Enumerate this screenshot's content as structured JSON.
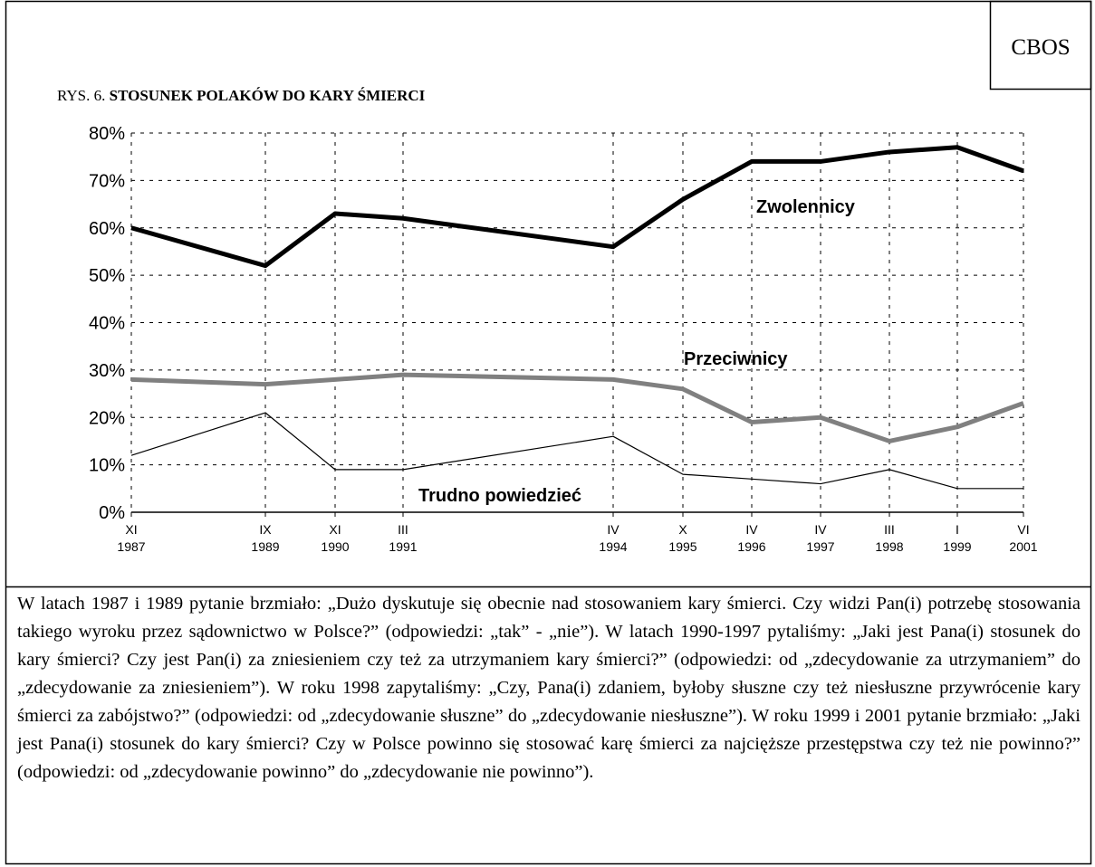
{
  "logo": "CBOS",
  "chart_data": {
    "type": "line",
    "figure_label": "RYS. 6.",
    "title": "STOSUNEK POLAKÓW DO KARY ŚMIERCI",
    "categories": [
      {
        "month": "XI",
        "year": "1987"
      },
      {
        "month": "IX",
        "year": "1989"
      },
      {
        "month": "XI",
        "year": "1990"
      },
      {
        "month": "III",
        "year": "1991"
      },
      {
        "month": "IV",
        "year": "1994"
      },
      {
        "month": "X",
        "year": "1995"
      },
      {
        "month": "IV",
        "year": "1996"
      },
      {
        "month": "IV",
        "year": "1997"
      },
      {
        "month": "III",
        "year": "1998"
      },
      {
        "month": "I",
        "year": "1999"
      },
      {
        "month": "VI",
        "year": "2001"
      }
    ],
    "series": [
      {
        "name": "Zwolennicy",
        "color": "#000000",
        "values": [
          60,
          52,
          63,
          62,
          56,
          66,
          74,
          74,
          76,
          77,
          72
        ]
      },
      {
        "name": "Przeciwnicy",
        "color": "#808080",
        "values": [
          28,
          27,
          28,
          29,
          28,
          26,
          19,
          20,
          15,
          18,
          23
        ]
      },
      {
        "name": "Trudno powiedzieć",
        "color": "#000000",
        "values": [
          12,
          21,
          9,
          9,
          16,
          8,
          7,
          6,
          9,
          5,
          5
        ]
      }
    ],
    "ylim": [
      0,
      80
    ],
    "yticks": [
      {
        "value": 0,
        "label": "0%"
      },
      {
        "value": 10,
        "label": "10%"
      },
      {
        "value": 20,
        "label": "20%"
      },
      {
        "value": 30,
        "label": "30%"
      },
      {
        "value": 40,
        "label": "40%"
      },
      {
        "value": 50,
        "label": "50%"
      },
      {
        "value": 60,
        "label": "60%"
      },
      {
        "value": 70,
        "label": "70%"
      },
      {
        "value": 80,
        "label": "80%"
      }
    ],
    "grid": true
  },
  "note": "W latach 1987 i 1989 pytanie brzmiało: „Dużo dyskutuje się obecnie nad stosowaniem kary śmierci. Czy widzi Pan(i) potrzebę stosowania takiego wyroku przez sądownictwo w Polsce?” (odpowiedzi: „tak” - „nie”). W latach 1990-1997 pytaliśmy: „Jaki jest Pana(i) stosunek do kary śmierci? Czy jest Pan(i) za zniesieniem czy też za utrzymaniem kary śmierci?” (odpowiedzi: od „zdecydowanie za utrzymaniem” do „zdecydowanie za zniesieniem”). W roku 1998 zapytaliśmy: „Czy, Pana(i) zdaniem, byłoby słuszne czy też niesłuszne przywrócenie kary śmierci za zabójstwo?” (odpowiedzi: od „zdecydowanie słuszne” do „zdecydowanie niesłuszne”). W roku 1999 i 2001 pytanie brzmiało: „Jaki jest Pana(i) stosunek do kary śmierci? Czy w Polsce powinno się stosować karę śmierci za najcięższe przestępstwa czy też nie powinno?” (odpowiedzi: od „zdecydowanie powinno” do „zdecydowanie nie powinno”)."
}
